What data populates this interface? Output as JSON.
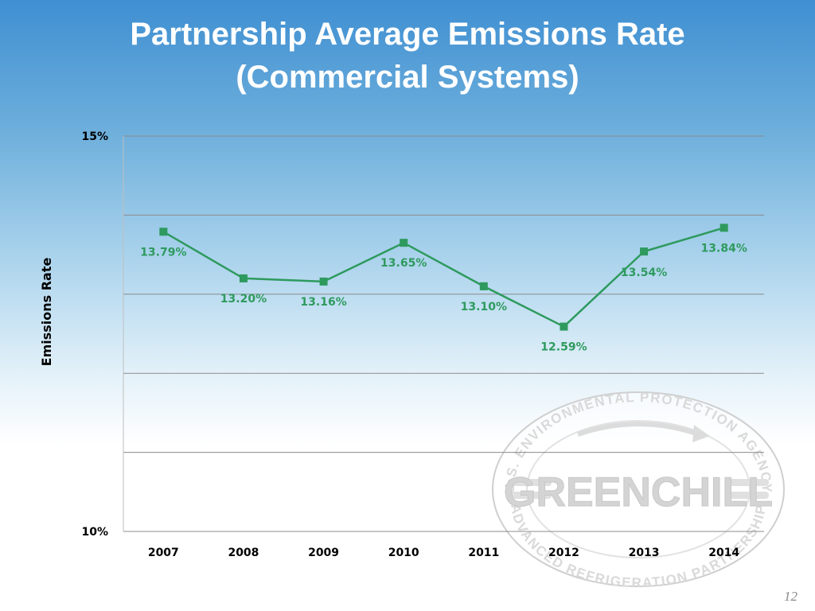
{
  "title": {
    "line1": "Partnership Average Emissions Rate",
    "line2": "(Commercial Systems)"
  },
  "slide_number": "12",
  "logo": {
    "text": "GREENCHILL",
    "ring_top": "U.S. ENVIRONMENTAL PROTECTION AGENCY",
    "ring_bottom": "ADVANCED REFRIGERATION PARTNERSHIP"
  },
  "colors": {
    "series": "#2e9a5e",
    "grid": "#8c8c8c"
  },
  "chart_data": {
    "type": "line",
    "title": "Partnership Average Emissions Rate (Commercial Systems)",
    "xlabel": "",
    "ylabel": "Emissions Rate",
    "categories": [
      "2007",
      "2008",
      "2009",
      "2010",
      "2011",
      "2012",
      "2013",
      "2014"
    ],
    "series": [
      {
        "values": [
          13.79,
          13.2,
          13.16,
          13.65,
          13.1,
          12.59,
          13.54,
          13.84
        ],
        "labels": [
          "13.79%",
          "13.20%",
          "13.16%",
          "13.65%",
          "13.10%",
          "12.59%",
          "13.54%",
          "13.84%"
        ]
      }
    ],
    "ylim": [
      10,
      15
    ],
    "ytick_labels": [
      {
        "value": 15,
        "label": "15%"
      },
      {
        "value": 10,
        "label": "10%"
      }
    ],
    "gridlines": [
      10,
      11,
      12,
      13,
      14,
      15
    ],
    "grid": true,
    "legend": "none",
    "marker": "square"
  }
}
